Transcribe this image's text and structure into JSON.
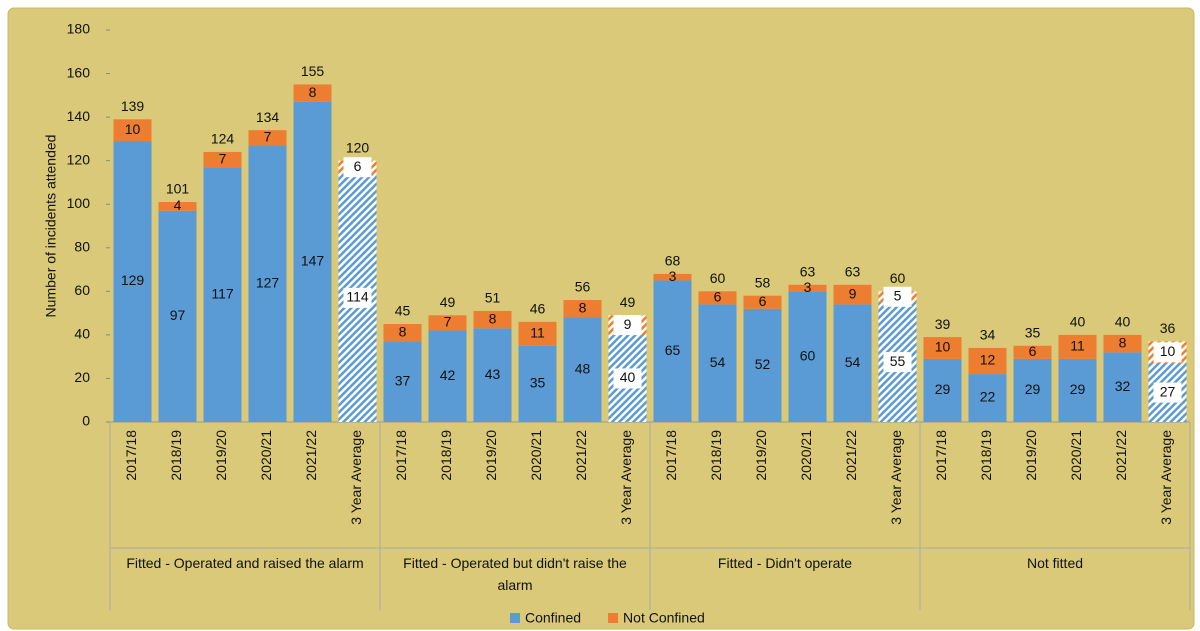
{
  "chart_data": {
    "type": "stacked_bar",
    "y_label": "Number of incidents attended",
    "groups": [
      {
        "name": "Fitted - Operated and raised the alarm",
        "categories": [
          "2017/18",
          "2018/19",
          "2019/20",
          "2020/21",
          "2021/22",
          "3 Year Average"
        ]
      },
      {
        "name": "Fitted - Operated but didn't raise the alarm",
        "categories": [
          "2017/18",
          "2018/19",
          "2019/20",
          "2020/21",
          "2021/22",
          "3 Year Average"
        ]
      },
      {
        "name": "Fitted - Didn't operate",
        "categories": [
          "2017/18",
          "2018/19",
          "2019/20",
          "2020/21",
          "2021/22",
          "3 Year Average"
        ]
      },
      {
        "name": "Not fitted",
        "categories": [
          "2017/18",
          "2018/19",
          "2019/20",
          "2020/21",
          "2021/22",
          "3 Year Average"
        ]
      }
    ],
    "hatched": [
      false,
      false,
      false,
      false,
      false,
      true,
      false,
      false,
      false,
      false,
      false,
      true,
      false,
      false,
      false,
      false,
      false,
      true,
      false,
      false,
      false,
      false,
      false,
      true
    ],
    "series": [
      {
        "name": "Confined",
        "color": "#5b9bd5",
        "values": [
          129,
          97,
          117,
          127,
          147,
          114,
          37,
          42,
          43,
          35,
          48,
          40,
          65,
          54,
          52,
          60,
          54,
          55,
          29,
          22,
          29,
          29,
          32,
          27
        ]
      },
      {
        "name": "Not Confined",
        "color": "#ed7d31",
        "values": [
          10,
          4,
          7,
          7,
          8,
          6,
          8,
          7,
          8,
          11,
          8,
          9,
          3,
          6,
          6,
          3,
          9,
          5,
          10,
          12,
          6,
          11,
          8,
          10
        ]
      }
    ],
    "totals": [
      139,
      101,
      124,
      134,
      155,
      120,
      45,
      49,
      51,
      46,
      56,
      49,
      68,
      60,
      58,
      63,
      63,
      60,
      39,
      34,
      35,
      40,
      40,
      36
    ],
    "ylim": [
      0,
      180
    ],
    "yticks": [
      0,
      20,
      40,
      60,
      80,
      100,
      120,
      140,
      160,
      180
    ],
    "legend": "bottom"
  }
}
